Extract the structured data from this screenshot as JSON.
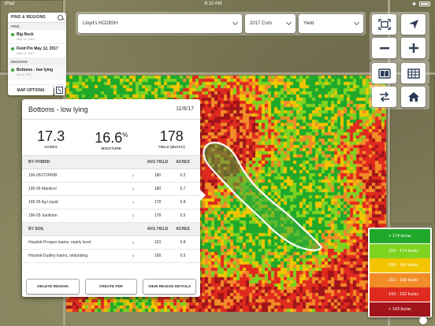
{
  "status_bar": {
    "carrier": "iPad",
    "time": "8:10 AM",
    "battery_percent": 100
  },
  "pins_panel": {
    "title": "PINS & REGIONS",
    "pins_header": "PINS",
    "pins": [
      {
        "name": "Big Rock",
        "date": "May 15, 2016"
      },
      {
        "name": "Field Pin May 12, 2017",
        "date": "May 12, 2017"
      }
    ],
    "regions_header": "REGIONS",
    "regions": [
      {
        "name": "Bottoms - low lying",
        "date": "Jun 6, 2017"
      }
    ]
  },
  "map_options_label": "MAP OPTIONS",
  "selectors": {
    "field": "Lloyd's HO28SH",
    "season": "2017 Corn",
    "layer": "Yield"
  },
  "toolbar_icons": [
    "fit-extent-icon",
    "navigate-arrow-icon",
    "zoom-out-icon",
    "zoom-in-icon",
    "split-view-icon",
    "table-icon",
    "swap-layers-icon",
    "home-icon"
  ],
  "region_card": {
    "title": "Bottoms - low lying",
    "date": "11/6/17",
    "stats": [
      {
        "value": "17.3",
        "unit": "",
        "label": "ACRES"
      },
      {
        "value": "16.6",
        "unit": "%",
        "label": "MOISTURE"
      },
      {
        "value": "178",
        "unit": "",
        "label": "YIELD (BU/AC)"
      }
    ],
    "hybrid_section": {
      "header": "BY HYBRID",
      "col_yield": "AVG YIELD",
      "col_acres": "ACRES"
    },
    "hybrids": [
      {
        "name": "196-05VT2PRIB",
        "yield": "180",
        "acres": "0.2"
      },
      {
        "name": "196-05 Manticor",
        "yield": "180",
        "acres": "5.7"
      },
      {
        "name": "196-05 Ag Liquid",
        "yield": "178",
        "acres": "5.8"
      },
      {
        "name": "196-05 Xanthion",
        "yield": "178",
        "acres": "5.5"
      }
    ],
    "soil_section": {
      "header": "BY SOIL",
      "col_yield": "AVG YIELD",
      "col_acres": "ACRES"
    },
    "soils": [
      {
        "name": "Houdek-Prosper loams, nearly level",
        "yield": "163",
        "acres": "0.8"
      },
      {
        "name": "Houdek-Dudley loams, undulating",
        "yield": "168",
        "acres": "0.5"
      }
    ],
    "actions": {
      "delete": "DELETE REGION",
      "pdf": "CREATE PDF",
      "view": "VIEW REGION DETAILS"
    }
  },
  "legend": [
    {
      "label": "> 174 bu/ac",
      "color": "#1fa82a"
    },
    {
      "label": "164 - 174 bu/ac",
      "color": "#7ed321"
    },
    {
      "label": "158 - 164 bu/ac",
      "color": "#f2c500"
    },
    {
      "label": "152 - 158 bu/ac",
      "color": "#f28c28"
    },
    {
      "label": "143 - 152 bu/ac",
      "color": "#e02a1f"
    },
    {
      "label": "< 143 bu/ac",
      "color": "#a0141a"
    }
  ]
}
